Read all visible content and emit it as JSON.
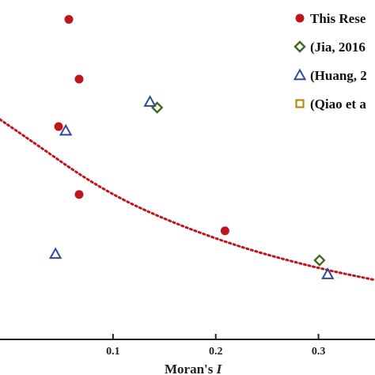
{
  "chart_data": {
    "type": "scatter",
    "title": "",
    "xlabel": "Moran's ",
    "xlabel_italic": "I",
    "ylabel": "",
    "xlim": [
      -0.01,
      0.355
    ],
    "ylim": [
      0,
      1
    ],
    "xticks": [
      0.1,
      0.2,
      0.3
    ],
    "xtick_labels": [
      "0.1",
      "0.2",
      "0.3"
    ],
    "grid": false,
    "legend_position": "top-right",
    "series": [
      {
        "name": "This Rese",
        "marker": "circle",
        "color": "#c0161b",
        "points": [
          {
            "x": 0.057,
            "y": 0.943
          },
          {
            "x": 0.067,
            "y": 0.767
          },
          {
            "x": 0.047,
            "y": 0.627
          },
          {
            "x": 0.067,
            "y": 0.427
          },
          {
            "x": 0.209,
            "y": 0.32
          }
        ]
      },
      {
        "name": "(Jia, 2016",
        "marker": "diamond",
        "color": "#3f6b1c",
        "points": [
          {
            "x": 0.143,
            "y": 0.683
          },
          {
            "x": 0.301,
            "y": 0.233
          }
        ]
      },
      {
        "name": "(Huang, 2",
        "marker": "triangle",
        "color": "#2f4a9a",
        "points": [
          {
            "x": 0.136,
            "y": 0.7
          },
          {
            "x": 0.054,
            "y": 0.615
          },
          {
            "x": 0.044,
            "y": 0.252
          },
          {
            "x": 0.309,
            "y": 0.192
          }
        ]
      },
      {
        "name": "(Qiao et a",
        "marker": "square",
        "color": "#b58b14",
        "points": []
      }
    ],
    "trendline": {
      "style": "dotted",
      "color": "#c0161b",
      "points": [
        {
          "x": -0.01,
          "y": 0.648
        },
        {
          "x": 0.03,
          "y": 0.565
        },
        {
          "x": 0.07,
          "y": 0.48
        },
        {
          "x": 0.11,
          "y": 0.41
        },
        {
          "x": 0.15,
          "y": 0.355
        },
        {
          "x": 0.19,
          "y": 0.308
        },
        {
          "x": 0.23,
          "y": 0.267
        },
        {
          "x": 0.27,
          "y": 0.233
        },
        {
          "x": 0.31,
          "y": 0.203
        },
        {
          "x": 0.355,
          "y": 0.175
        }
      ]
    }
  }
}
